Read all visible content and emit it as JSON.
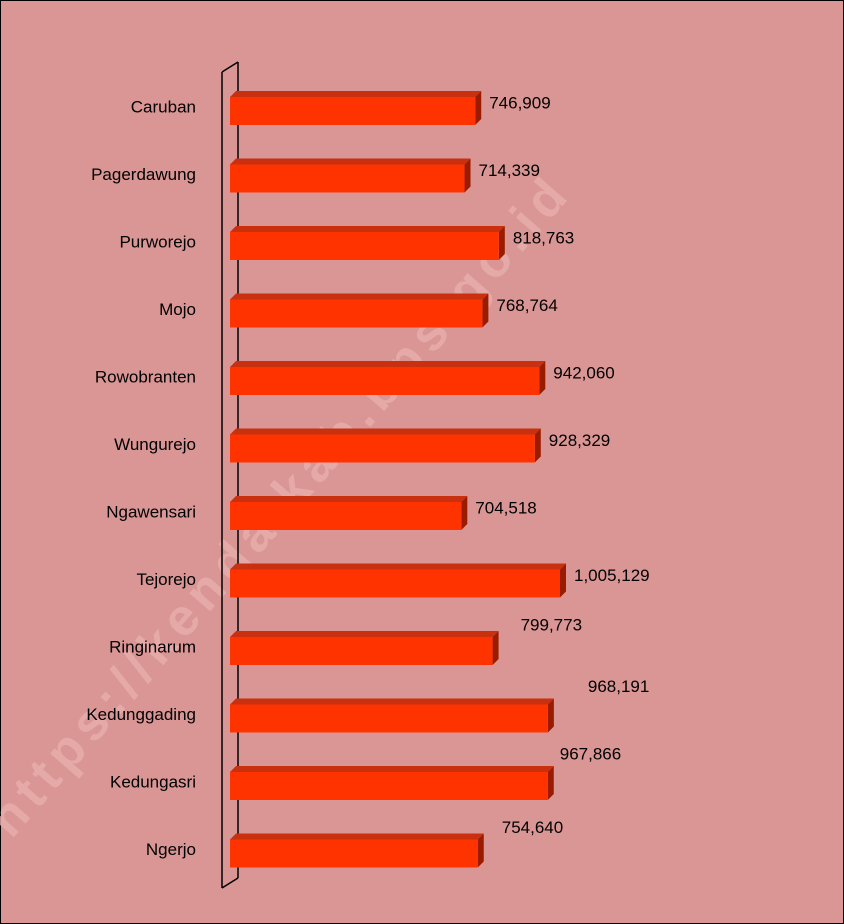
{
  "chart_data": {
    "type": "bar",
    "orientation": "horizontal",
    "categories": [
      "Caruban",
      "Pagerdawung",
      "Purworejo",
      "Mojo",
      "Rowobranten",
      "Wungurejo",
      "Ngawensari",
      "Tejorejo",
      "Ringinarum",
      "Kedunggading",
      "Kedungasri",
      "Ngerjo"
    ],
    "values": [
      746909,
      714339,
      818763,
      768764,
      942060,
      928329,
      704518,
      1005129,
      799773,
      968191,
      967866,
      754640
    ],
    "value_labels": [
      "746,909",
      "714,339",
      "818,763",
      "768,764",
      "942,060",
      "928,329",
      "704,518",
      "1,005,129",
      "799,773",
      "968,191",
      "967,866",
      "754,640"
    ],
    "color": "#ff3300",
    "watermark": "https://kendalkab.bps.go.id"
  }
}
